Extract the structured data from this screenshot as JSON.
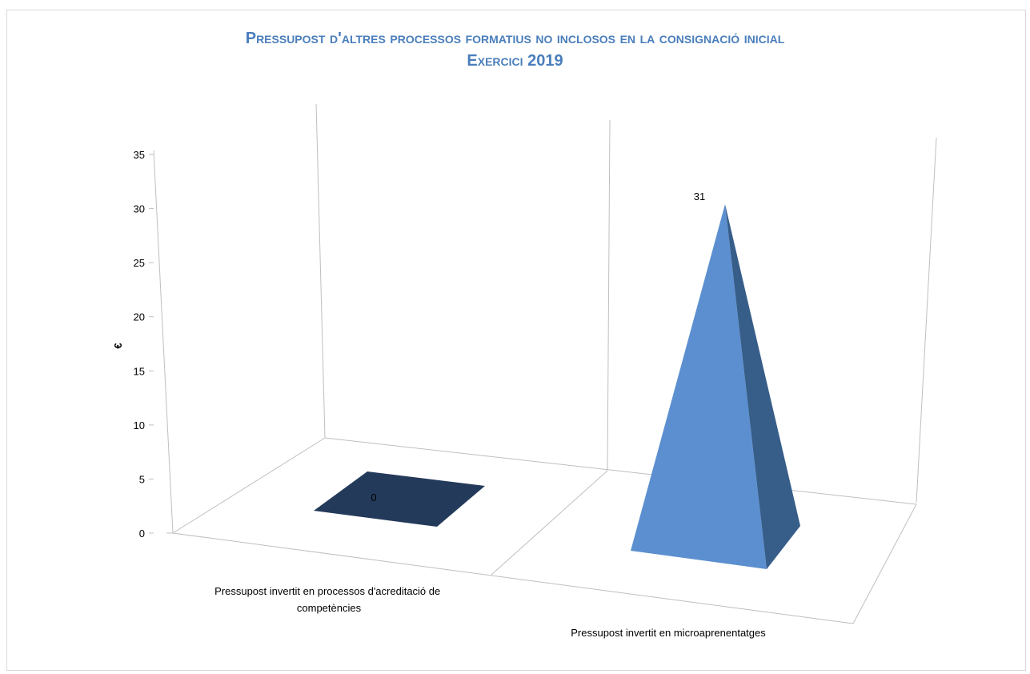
{
  "chart_data": {
    "type": "bar",
    "style": "3d-pyramid",
    "title_line1": "Pressupost d'altres processos formatius no inclosos en la consignació inicial",
    "title_line2": "Exercici 2019",
    "ylabel": "€",
    "xlabel": "",
    "ylim": [
      0,
      35
    ],
    "y_ticks": [
      "0",
      "5",
      "10",
      "15",
      "20",
      "25",
      "30",
      "35"
    ],
    "categories": [
      "Pressupost invertit en processos d'acreditació de competències",
      "Pressupost invertit en microaprenentatges"
    ],
    "category_lines": [
      [
        "Pressupost invertit en processos d'acreditació de",
        "competències"
      ],
      [
        "Pressupost invertit en microaprenentatges"
      ]
    ],
    "values": [
      0,
      31
    ],
    "data_labels": [
      "0",
      "31"
    ],
    "grid": false,
    "legend": "none",
    "colors": {
      "title": "#4a7ebb",
      "front_face": "#5b8fd0",
      "side_face": "#375d89",
      "flat_base": "#243a5a",
      "axis_lines": "#bfbfbf"
    }
  }
}
